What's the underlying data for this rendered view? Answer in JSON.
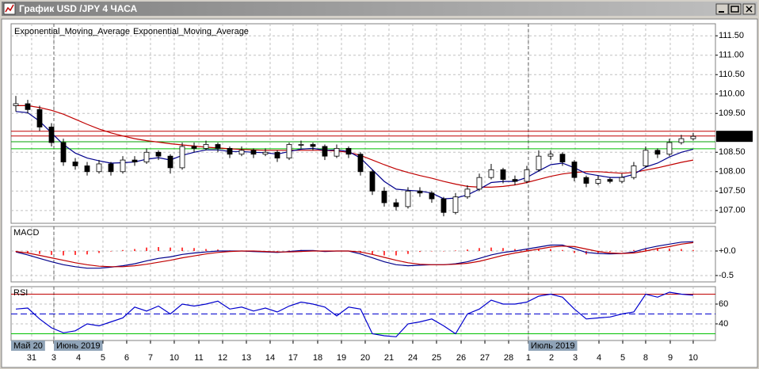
{
  "window": {
    "title": "График USD /JPY  4 ЧАСА"
  },
  "chart_data": [
    {
      "type": "candlestick",
      "up_color": "#ffffff",
      "down_color": "#000000",
      "open": [
        109.7,
        109.75,
        109.6,
        109.15,
        108.75,
        108.25,
        108.15,
        108.0,
        108.2,
        108.0,
        108.3,
        108.25,
        108.5,
        108.4,
        108.1,
        108.65,
        108.6,
        108.7,
        108.6,
        108.45,
        108.55,
        108.45,
        108.5,
        108.35,
        108.7,
        108.7,
        108.65,
        108.4,
        108.6,
        108.45,
        108.0,
        107.5,
        107.2,
        107.1,
        107.5,
        107.45,
        107.3,
        106.95,
        107.35,
        107.55,
        107.85,
        108.05,
        107.8,
        107.75,
        108.05,
        108.4,
        108.45,
        108.25,
        107.85,
        107.7,
        107.8,
        107.75,
        107.85,
        108.15,
        108.55,
        108.45,
        108.75,
        108.85
      ],
      "high": [
        109.95,
        109.85,
        109.7,
        109.25,
        108.85,
        108.35,
        108.25,
        108.3,
        108.25,
        108.4,
        108.4,
        108.6,
        108.55,
        108.45,
        108.75,
        108.75,
        108.8,
        108.75,
        108.65,
        108.65,
        108.6,
        108.6,
        108.55,
        108.75,
        108.8,
        108.75,
        108.7,
        108.7,
        108.65,
        108.5,
        108.05,
        107.6,
        107.3,
        107.6,
        107.6,
        107.5,
        107.35,
        107.45,
        107.65,
        107.95,
        108.2,
        108.1,
        107.9,
        108.15,
        108.55,
        108.55,
        108.5,
        108.3,
        107.9,
        107.9,
        107.85,
        107.95,
        108.25,
        108.65,
        108.6,
        108.85,
        108.95,
        109.0
      ],
      "low": [
        109.55,
        109.5,
        109.05,
        108.65,
        108.15,
        108.05,
        107.9,
        107.95,
        107.9,
        107.95,
        108.15,
        108.2,
        108.3,
        107.95,
        108.05,
        108.5,
        108.55,
        108.5,
        108.35,
        108.4,
        108.35,
        108.4,
        108.25,
        108.3,
        108.6,
        108.55,
        108.3,
        108.35,
        108.35,
        107.9,
        107.4,
        107.1,
        107.0,
        107.05,
        107.35,
        107.2,
        106.85,
        106.9,
        107.3,
        107.5,
        107.8,
        107.7,
        107.65,
        107.7,
        108.0,
        108.3,
        108.15,
        107.75,
        107.6,
        107.65,
        107.7,
        107.7,
        107.8,
        108.1,
        108.35,
        108.4,
        108.7,
        108.8
      ],
      "close": [
        109.75,
        109.6,
        109.15,
        108.75,
        108.25,
        108.15,
        108.0,
        108.2,
        108.0,
        108.3,
        108.25,
        108.5,
        108.4,
        108.1,
        108.65,
        108.6,
        108.7,
        108.6,
        108.45,
        108.55,
        108.45,
        108.5,
        108.35,
        108.7,
        108.7,
        108.65,
        108.4,
        108.6,
        108.45,
        108.0,
        107.5,
        107.2,
        107.1,
        107.5,
        107.45,
        107.3,
        106.95,
        107.35,
        107.55,
        107.85,
        108.05,
        107.8,
        107.75,
        108.05,
        108.4,
        108.45,
        108.25,
        107.85,
        107.7,
        107.8,
        107.75,
        107.85,
        108.15,
        108.55,
        108.45,
        108.75,
        108.85,
        108.91
      ],
      "series": [
        {
          "name": "Exponential_Moving_Average",
          "color": "#c00000",
          "values": [
            109.7,
            109.7,
            109.65,
            109.58,
            109.48,
            109.35,
            109.22,
            109.1,
            109.0,
            108.92,
            108.85,
            108.8,
            108.76,
            108.72,
            108.69,
            108.66,
            108.63,
            108.61,
            108.59,
            108.57,
            108.56,
            108.55,
            108.55,
            108.55,
            108.55,
            108.55,
            108.55,
            108.53,
            108.5,
            108.42,
            108.3,
            108.18,
            108.07,
            107.98,
            107.9,
            107.83,
            107.75,
            107.68,
            107.62,
            107.6,
            107.6,
            107.62,
            107.66,
            107.72,
            107.8,
            107.88,
            107.94,
            107.98,
            108.0,
            108.0,
            107.98,
            107.96,
            107.98,
            108.04,
            108.1,
            108.17,
            108.24,
            108.3
          ]
        },
        {
          "name": "Exponential_Moving_Average",
          "color": "#00008b",
          "values": [
            109.55,
            109.52,
            109.3,
            109.0,
            108.7,
            108.48,
            108.35,
            108.28,
            108.22,
            108.23,
            108.25,
            108.32,
            108.36,
            108.3,
            108.42,
            108.5,
            108.56,
            108.56,
            108.52,
            108.52,
            108.5,
            108.49,
            108.45,
            108.52,
            108.58,
            108.6,
            108.55,
            108.56,
            108.52,
            108.35,
            108.05,
            107.75,
            107.55,
            107.52,
            107.5,
            107.45,
            107.3,
            107.32,
            107.4,
            107.55,
            107.72,
            107.75,
            107.75,
            107.85,
            108.02,
            108.18,
            108.22,
            108.1,
            107.95,
            107.9,
            107.85,
            107.85,
            107.93,
            108.12,
            108.22,
            108.38,
            108.5,
            108.58
          ]
        }
      ],
      "hlines": [
        {
          "value": 109.04,
          "color": "#c00000"
        },
        {
          "value": 108.92,
          "color": "#c00000"
        },
        {
          "value": 108.77,
          "color": "#00a000"
        },
        {
          "value": 108.59,
          "color": "#00c000"
        }
      ],
      "current_price": 108.91,
      "ylim": [
        106.67,
        111.81
      ],
      "yticks": [
        {
          "value": 107,
          "label": "107.00"
        },
        {
          "value": 107.5,
          "label": "107.50"
        },
        {
          "value": 108,
          "label": "108.00"
        },
        {
          "value": 108.5,
          "label": "108.50"
        },
        {
          "value": 109.5,
          "label": "109.50"
        },
        {
          "value": 110,
          "label": "110.00"
        },
        {
          "value": 110.5,
          "label": "110.50"
        },
        {
          "value": 111,
          "label": "111.00"
        },
        {
          "value": 111.5,
          "label": "111.50"
        }
      ],
      "grid": true
    },
    {
      "type": "macd",
      "title": "MACD",
      "histogram": {
        "color": "#ff0000",
        "values": [
          -0.01,
          -0.04,
          -0.06,
          -0.08,
          -0.09,
          -0.08,
          -0.07,
          -0.04,
          -0.01,
          0.02,
          0.04,
          0.07,
          0.08,
          0.07,
          0.07,
          0.06,
          0.04,
          0.03,
          0.01,
          0.0,
          -0.01,
          -0.01,
          -0.01,
          0.01,
          0.02,
          0.01,
          -0.01,
          0.0,
          0.0,
          -0.04,
          -0.07,
          -0.09,
          -0.09,
          -0.06,
          -0.02,
          0.0,
          0.0,
          0.01,
          0.03,
          0.06,
          0.07,
          0.06,
          0.04,
          0.04,
          0.04,
          0.04,
          0.02,
          -0.04,
          -0.07,
          -0.04,
          -0.02,
          0.0,
          0.02,
          0.05,
          0.05,
          0.05,
          0.04,
          0.02
        ]
      },
      "series": [
        {
          "color": "#00008b",
          "values": [
            -0.02,
            -0.08,
            -0.15,
            -0.22,
            -0.28,
            -0.32,
            -0.35,
            -0.35,
            -0.33,
            -0.3,
            -0.26,
            -0.2,
            -0.15,
            -0.12,
            -0.07,
            -0.04,
            -0.02,
            0.0,
            0.0,
            0.0,
            -0.01,
            -0.02,
            -0.03,
            -0.01,
            0.01,
            0.01,
            -0.01,
            0.0,
            0.0,
            -0.06,
            -0.14,
            -0.22,
            -0.28,
            -0.3,
            -0.29,
            -0.28,
            -0.28,
            -0.26,
            -0.22,
            -0.15,
            -0.08,
            -0.03,
            0.0,
            0.04,
            0.08,
            0.12,
            0.12,
            0.05,
            -0.03,
            -0.05,
            -0.06,
            -0.05,
            -0.02,
            0.05,
            0.1,
            0.14,
            0.18,
            0.19
          ]
        },
        {
          "color": "#c00000",
          "values": [
            -0.01,
            -0.04,
            -0.09,
            -0.14,
            -0.19,
            -0.24,
            -0.28,
            -0.31,
            -0.32,
            -0.32,
            -0.3,
            -0.27,
            -0.23,
            -0.19,
            -0.14,
            -0.1,
            -0.06,
            -0.03,
            -0.01,
            0.0,
            0.0,
            -0.01,
            -0.02,
            -0.02,
            -0.01,
            0.0,
            0.0,
            0.0,
            0.0,
            -0.02,
            -0.07,
            -0.13,
            -0.19,
            -0.24,
            -0.27,
            -0.28,
            -0.28,
            -0.27,
            -0.25,
            -0.21,
            -0.15,
            -0.09,
            -0.04,
            0.0,
            0.04,
            0.08,
            0.1,
            0.09,
            0.04,
            -0.01,
            -0.04,
            -0.05,
            -0.04,
            0.0,
            0.05,
            0.09,
            0.14,
            0.17
          ]
        }
      ],
      "ylim": [
        -0.63,
        0.5
      ],
      "yticks": [
        -0.5,
        {
          "value": 0,
          "label": "+0.0"
        }
      ],
      "grid": true
    },
    {
      "type": "rsi",
      "title": "RSI",
      "series": [
        {
          "color": "#0000cd",
          "values": [
            55,
            56,
            45,
            36,
            31,
            33,
            40,
            38,
            42,
            46,
            57,
            53,
            58,
            50,
            60,
            58,
            60,
            63,
            55,
            57,
            53,
            56,
            52,
            58,
            62,
            60,
            57,
            48,
            57,
            55,
            30,
            28,
            27,
            40,
            42,
            45,
            38,
            30,
            50,
            55,
            64,
            60,
            60,
            62,
            68,
            70,
            67,
            55,
            45,
            46,
            47,
            50,
            52,
            70,
            67,
            72,
            70,
            69
          ]
        }
      ],
      "levels": [
        {
          "value": 70,
          "color": "#c00000"
        },
        {
          "value": 50,
          "color": "#0000cd"
        },
        {
          "value": 30,
          "color": "#00c000"
        }
      ],
      "ylim": [
        23.2,
        77.6
      ],
      "yticks": [
        40,
        60
      ],
      "grid": true,
      "xlim": [
        -0.4,
        58.87
      ],
      "xticks": [
        {
          "value": 1.33,
          "label": "31"
        },
        {
          "value": 3.2,
          "label": "3"
        },
        {
          "value": 5.27,
          "label": "4"
        },
        {
          "value": 7.33,
          "label": "5"
        },
        {
          "value": 9.33,
          "label": "6"
        },
        {
          "value": 11.33,
          "label": "7"
        },
        {
          "value": 13.33,
          "label": "10"
        },
        {
          "value": 15.4,
          "label": "11"
        },
        {
          "value": 17.4,
          "label": "12"
        },
        {
          "value": 19.4,
          "label": "13"
        },
        {
          "value": 21.4,
          "label": "14"
        },
        {
          "value": 23.33,
          "label": "17"
        },
        {
          "value": 25.4,
          "label": "18"
        },
        {
          "value": 27.4,
          "label": "19"
        },
        {
          "value": 29.4,
          "label": "20"
        },
        {
          "value": 31.4,
          "label": "21"
        },
        {
          "value": 33.4,
          "label": "24"
        },
        {
          "value": 35.4,
          "label": "25"
        },
        {
          "value": 37.47,
          "label": "26"
        },
        {
          "value": 39.47,
          "label": "27"
        },
        {
          "value": 41.47,
          "label": "28"
        },
        {
          "value": 43.13,
          "label": "1"
        },
        {
          "value": 45.07,
          "label": "2"
        },
        {
          "value": 47.07,
          "label": "3"
        },
        {
          "value": 49.07,
          "label": "4"
        },
        {
          "value": 51.07,
          "label": "5"
        },
        {
          "value": 53,
          "label": "8"
        },
        {
          "value": 55.07,
          "label": "9"
        },
        {
          "value": 57,
          "label": "10"
        }
      ],
      "month_labels": [
        {
          "value": -0.4,
          "label": "Май 20"
        },
        {
          "value": 3.2,
          "label": "Июнь 2019"
        },
        {
          "value": 43.13,
          "label": "Июль 2019"
        }
      ]
    }
  ]
}
